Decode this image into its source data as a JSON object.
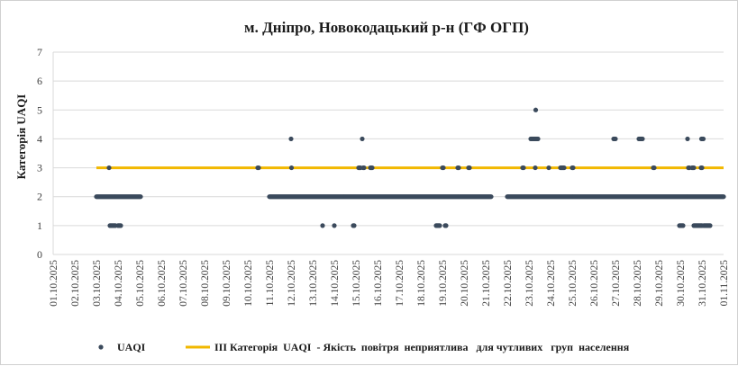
{
  "chart_data": {
    "type": "scatter",
    "title": "м. Дніпро, Новокодацький р-н (ГФ ОГП)",
    "ylabel": "Категорія UAQI",
    "xlabel": "",
    "ylim": [
      0,
      7
    ],
    "yticks": [
      "0",
      "1",
      "2",
      "3",
      "4",
      "5",
      "6",
      "7"
    ],
    "xticks": [
      "01.10.2025",
      "02.10.2025",
      "03.10.2025",
      "04.10.2025",
      "05.10.2025",
      "06.10.2025",
      "07.10.2025",
      "08.10.2025",
      "09.10.2025",
      "10.10.2025",
      "11.10.2025",
      "12.10.2025",
      "13.10.2025",
      "14.10.2025",
      "15.10.2025",
      "16.10.2025",
      "17.10.2025",
      "18.10.2025",
      "19.10.2025",
      "20.10.2025",
      "21.10.2025",
      "22.10.2025",
      "23.10.2025",
      "24.10.2025",
      "25.10.2025",
      "26.10.2025",
      "27.10.2025",
      "28.10.2025",
      "29.10.2025",
      "30.10.2025",
      "31.10.2025",
      "01.11.2025"
    ],
    "grid": "horizontal",
    "legend_position": "bottom",
    "legend": [
      {
        "name": "UAQI",
        "marker": "dot",
        "color": "#3b4a5c"
      },
      {
        "name": "ІІІ Категорія  UAQI  - Якість  повітря  неприятлива   для чутливих   груп  населення",
        "marker": "line",
        "color": "#f2b800"
      }
    ],
    "threshold": {
      "value": 3,
      "from": "03.10.2025",
      "to": "01.11.2025"
    },
    "series": [
      {
        "name": "UAQI",
        "segments": [
          {
            "from": "03.10.2025 00:00",
            "to": "05.10.2025 01:00",
            "value": 2
          },
          {
            "from": "11.10.2025 00:00",
            "to": "21.10.2025 06:00",
            "value": 2
          },
          {
            "from": "22.10.2025 00:00",
            "to": "01.11.2025 00:00",
            "value": 2
          }
        ],
        "points": [
          [
            "03.10.2025 14:00",
            3
          ],
          [
            "03.10.2025 15:00",
            1
          ],
          [
            "03.10.2025 16:00",
            1
          ],
          [
            "03.10.2025 17:00",
            1
          ],
          [
            "03.10.2025 18:00",
            1
          ],
          [
            "03.10.2025 19:00",
            1
          ],
          [
            "03.10.2025 20:00",
            1
          ],
          [
            "03.10.2025 21:00",
            1
          ],
          [
            "04.10.2025 00:00",
            1
          ],
          [
            "04.10.2025 01:00",
            1
          ],
          [
            "04.10.2025 02:00",
            1
          ],
          [
            "04.10.2025 03:00",
            1
          ],
          [
            "10.10.2025 11:00",
            3
          ],
          [
            "10.10.2025 12:00",
            3
          ],
          [
            "12.10.2025 00:00",
            4
          ],
          [
            "12.10.2025 00:30",
            3
          ],
          [
            "13.10.2025 11:00",
            1
          ],
          [
            "14.10.2025 00:00",
            1
          ],
          [
            "14.10.2025 21:00",
            1
          ],
          [
            "14.10.2025 22:00",
            1
          ],
          [
            "15.10.2025 03:00",
            3
          ],
          [
            "15.10.2025 04:00",
            3
          ],
          [
            "15.10.2025 05:00",
            3
          ],
          [
            "15.10.2025 07:00",
            4
          ],
          [
            "15.10.2025 08:00",
            3
          ],
          [
            "15.10.2025 09:00",
            3
          ],
          [
            "15.10.2025 16:00",
            3
          ],
          [
            "15.10.2025 17:00",
            3
          ],
          [
            "15.10.2025 18:00",
            3
          ],
          [
            "18.10.2025 17:00",
            1
          ],
          [
            "18.10.2025 18:00",
            1
          ],
          [
            "18.10.2025 19:00",
            1
          ],
          [
            "18.10.2025 20:00",
            1
          ],
          [
            "18.10.2025 21:00",
            1
          ],
          [
            "19.10.2025 00:00",
            3
          ],
          [
            "19.10.2025 01:00",
            3
          ],
          [
            "19.10.2025 03:00",
            1
          ],
          [
            "19.10.2025 04:00",
            1
          ],
          [
            "19.10.2025 17:00",
            3
          ],
          [
            "19.10.2025 18:00",
            3
          ],
          [
            "20.10.2025 05:00",
            3
          ],
          [
            "20.10.2025 06:00",
            3
          ],
          [
            "22.10.2025 17:00",
            3
          ],
          [
            "22.10.2025 18:00",
            3
          ],
          [
            "23.10.2025 02:00",
            4
          ],
          [
            "23.10.2025 03:00",
            4
          ],
          [
            "23.10.2025 04:00",
            4
          ],
          [
            "23.10.2025 05:00",
            4
          ],
          [
            "23.10.2025 06:00",
            4
          ],
          [
            "23.10.2025 07:00",
            4
          ],
          [
            "23.10.2025 08:00",
            4
          ],
          [
            "23.10.2025 09:00",
            4
          ],
          [
            "23.10.2025 10:00",
            4
          ],
          [
            "23.10.2025 07:30",
            5
          ],
          [
            "23.10.2025 07:00",
            3
          ],
          [
            "23.10.2025 22:00",
            3
          ],
          [
            "24.10.2025 11:00",
            3
          ],
          [
            "24.10.2025 12:00",
            3
          ],
          [
            "24.10.2025 13:00",
            3
          ],
          [
            "24.10.2025 14:00",
            3
          ],
          [
            "24.10.2025 15:00",
            3
          ],
          [
            "25.10.2025 00:00",
            3
          ],
          [
            "25.10.2025 01:00",
            3
          ],
          [
            "26.10.2025 22:00",
            4
          ],
          [
            "26.10.2025 23:00",
            4
          ],
          [
            "27.10.2025 00:00",
            4
          ],
          [
            "28.10.2025 02:00",
            4
          ],
          [
            "28.10.2025 03:00",
            4
          ],
          [
            "28.10.2025 04:00",
            4
          ],
          [
            "28.10.2025 05:00",
            4
          ],
          [
            "28.10.2025 06:00",
            4
          ],
          [
            "28.10.2025 18:00",
            3
          ],
          [
            "28.10.2025 19:00",
            3
          ],
          [
            "29.10.2025 23:00",
            1
          ],
          [
            "30.10.2025 00:00",
            1
          ],
          [
            "30.10.2025 01:00",
            1
          ],
          [
            "30.10.2025 02:00",
            1
          ],
          [
            "30.10.2025 03:00",
            1
          ],
          [
            "30.10.2025 08:00",
            4
          ],
          [
            "30.10.2025 09:00",
            3
          ],
          [
            "30.10.2025 10:00",
            3
          ],
          [
            "30.10.2025 13:00",
            3
          ],
          [
            "30.10.2025 14:00",
            3
          ],
          [
            "30.10.2025 15:00",
            3
          ],
          [
            "30.10.2025 15:00",
            1
          ],
          [
            "30.10.2025 16:00",
            1
          ],
          [
            "30.10.2025 17:00",
            1
          ],
          [
            "30.10.2025 18:00",
            1
          ],
          [
            "30.10.2025 19:00",
            1
          ],
          [
            "30.10.2025 20:00",
            1
          ],
          [
            "30.10.2025 21:00",
            1
          ],
          [
            "30.10.2025 22:00",
            1
          ],
          [
            "30.10.2025 23:00",
            1
          ],
          [
            "31.10.2025 00:00",
            1
          ],
          [
            "30.10.2025 23:00",
            3
          ],
          [
            "31.10.2025 00:00",
            3
          ],
          [
            "30.10.2025 23:30",
            4
          ],
          [
            "31.10.2025 00:30",
            4
          ],
          [
            "31.10.2025 01:30",
            4
          ],
          [
            "31.10.2025 02:00",
            1
          ],
          [
            "31.10.2025 03:00",
            1
          ],
          [
            "31.10.2025 04:00",
            1
          ],
          [
            "31.10.2025 05:00",
            1
          ],
          [
            "31.10.2025 06:00",
            1
          ],
          [
            "31.10.2025 07:00",
            1
          ],
          [
            "31.10.2025 08:00",
            1
          ],
          [
            "31.10.2025 09:00",
            1
          ]
        ]
      }
    ]
  },
  "colors": {
    "point": "#3b4a5c",
    "threshold": "#f2b800",
    "grid": "#d9d9d9",
    "axis_text": "#404040",
    "title": "#1a1a1a"
  }
}
